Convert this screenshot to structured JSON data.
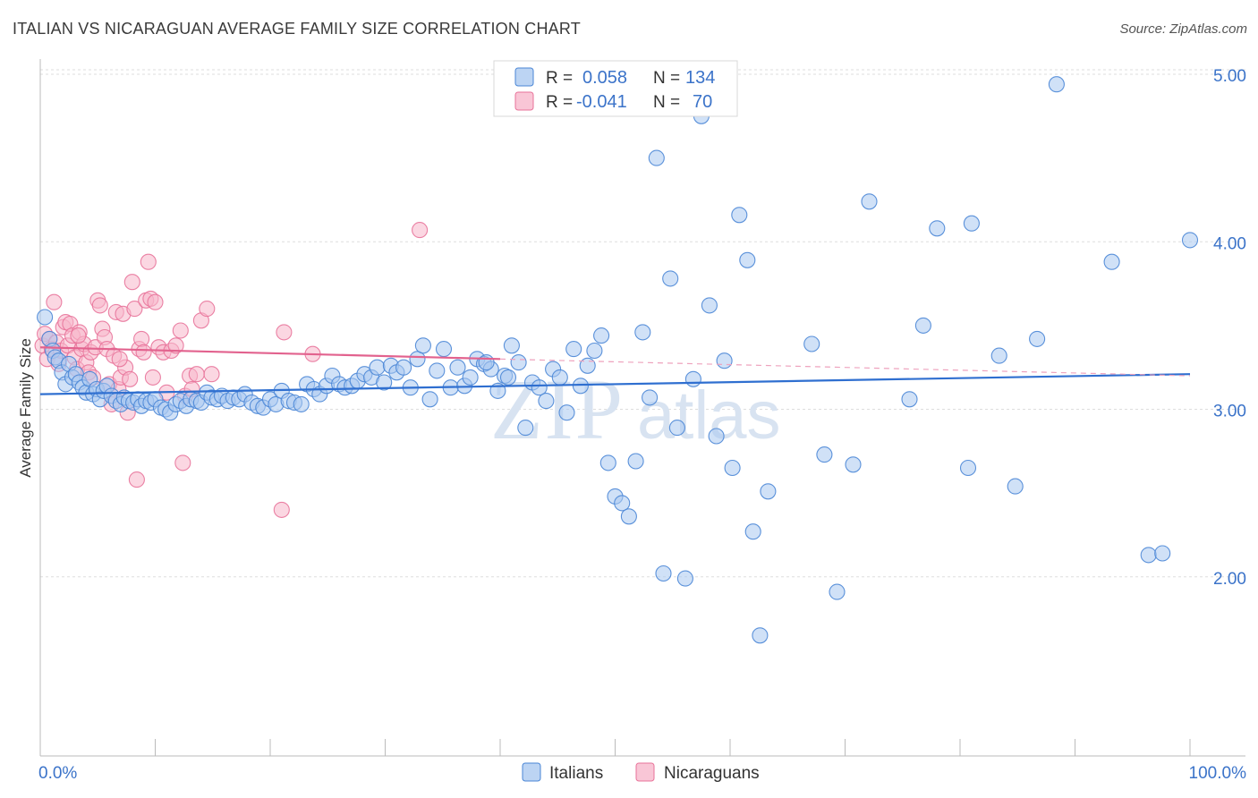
{
  "title": "ITALIAN VS NICARAGUAN AVERAGE FAMILY SIZE CORRELATION CHART",
  "source": "Source: ZipAtlas.com",
  "watermark": {
    "zip": "ZIP",
    "atlas": "atlas"
  },
  "legend_top": [
    {
      "name": "Italians",
      "r_label": "R =",
      "r_value": "0.058",
      "n_label": "N =",
      "n_value": "134",
      "color": "#4a86d6"
    },
    {
      "name": "Nicaraguans",
      "r_label": "R =",
      "r_value": "-0.041",
      "n_label": "N =",
      "n_value": "70",
      "color": "#e8739a"
    }
  ],
  "chart_data": {
    "type": "scatter",
    "title": "ITALIAN VS NICARAGUAN AVERAGE FAMILY SIZE CORRELATION CHART",
    "xlabel": "",
    "ylabel": "Average Family Size",
    "xlim": [
      0,
      100
    ],
    "ylim": [
      1.0,
      5.1
    ],
    "x_tick_labels": [
      "0.0%",
      "100.0%"
    ],
    "y_ticks": [
      2.0,
      3.0,
      4.0,
      5.0
    ],
    "y_tick_labels": [
      "2.00",
      "3.00",
      "4.00",
      "5.00"
    ],
    "grid": true,
    "legend": "bottom-center",
    "series": [
      {
        "name": "Italians",
        "color": "#4a86d6",
        "fill": "#a9c8f0",
        "trend": [
          [
            0,
            3.09
          ],
          [
            100,
            3.21
          ]
        ],
        "points": [
          [
            0.4,
            3.55
          ],
          [
            0.8,
            3.42
          ],
          [
            1.1,
            3.35
          ],
          [
            1.3,
            3.31
          ],
          [
            1.6,
            3.29
          ],
          [
            1.9,
            3.22
          ],
          [
            2.2,
            3.15
          ],
          [
            2.5,
            3.27
          ],
          [
            2.8,
            3.19
          ],
          [
            3.1,
            3.21
          ],
          [
            3.4,
            3.16
          ],
          [
            3.7,
            3.13
          ],
          [
            4.0,
            3.1
          ],
          [
            4.3,
            3.18
          ],
          [
            4.6,
            3.09
          ],
          [
            4.9,
            3.12
          ],
          [
            5.2,
            3.06
          ],
          [
            5.5,
            3.11
          ],
          [
            5.8,
            3.14
          ],
          [
            6.2,
            3.08
          ],
          [
            6.6,
            3.05
          ],
          [
            7.0,
            3.03
          ],
          [
            7.3,
            3.07
          ],
          [
            7.7,
            3.05
          ],
          [
            8.1,
            3.04
          ],
          [
            8.5,
            3.06
          ],
          [
            8.8,
            3.02
          ],
          [
            9.2,
            3.05
          ],
          [
            9.6,
            3.04
          ],
          [
            10.0,
            3.06
          ],
          [
            10.5,
            3.01
          ],
          [
            10.9,
            3.0
          ],
          [
            11.3,
            2.98
          ],
          [
            11.8,
            3.03
          ],
          [
            12.2,
            3.05
          ],
          [
            12.7,
            3.02
          ],
          [
            13.1,
            3.06
          ],
          [
            13.6,
            3.05
          ],
          [
            14.0,
            3.04
          ],
          [
            14.5,
            3.1
          ],
          [
            14.9,
            3.07
          ],
          [
            15.4,
            3.06
          ],
          [
            15.8,
            3.08
          ],
          [
            16.3,
            3.05
          ],
          [
            16.8,
            3.07
          ],
          [
            17.3,
            3.06
          ],
          [
            17.8,
            3.09
          ],
          [
            18.4,
            3.04
          ],
          [
            18.9,
            3.02
          ],
          [
            19.4,
            3.01
          ],
          [
            20.0,
            3.06
          ],
          [
            20.5,
            3.03
          ],
          [
            21.0,
            3.11
          ],
          [
            21.6,
            3.05
          ],
          [
            22.1,
            3.04
          ],
          [
            22.7,
            3.03
          ],
          [
            23.2,
            3.15
          ],
          [
            23.8,
            3.12
          ],
          [
            24.3,
            3.09
          ],
          [
            24.9,
            3.14
          ],
          [
            25.4,
            3.2
          ],
          [
            26.0,
            3.15
          ],
          [
            26.5,
            3.13
          ],
          [
            27.1,
            3.14
          ],
          [
            27.6,
            3.17
          ],
          [
            28.2,
            3.21
          ],
          [
            28.8,
            3.19
          ],
          [
            29.3,
            3.25
          ],
          [
            29.9,
            3.16
          ],
          [
            30.5,
            3.26
          ],
          [
            31.0,
            3.22
          ],
          [
            31.6,
            3.25
          ],
          [
            32.2,
            3.13
          ],
          [
            32.8,
            3.3
          ],
          [
            33.3,
            3.38
          ],
          [
            33.9,
            3.06
          ],
          [
            34.5,
            3.23
          ],
          [
            35.1,
            3.36
          ],
          [
            35.7,
            3.13
          ],
          [
            36.3,
            3.25
          ],
          [
            36.9,
            3.14
          ],
          [
            37.4,
            3.19
          ],
          [
            38.0,
            3.3
          ],
          [
            38.6,
            3.27
          ],
          [
            39.2,
            3.24
          ],
          [
            39.8,
            3.11
          ],
          [
            40.4,
            3.2
          ],
          [
            41.0,
            3.38
          ],
          [
            41.6,
            3.28
          ],
          [
            42.2,
            2.89
          ],
          [
            42.8,
            3.16
          ],
          [
            43.4,
            3.13
          ],
          [
            44.0,
            3.05
          ],
          [
            44.6,
            3.24
          ],
          [
            45.2,
            3.19
          ],
          [
            45.8,
            2.98
          ],
          [
            46.4,
            3.36
          ],
          [
            47.0,
            3.14
          ],
          [
            47.6,
            3.26
          ],
          [
            48.2,
            3.35
          ],
          [
            48.8,
            3.44
          ],
          [
            49.4,
            2.68
          ],
          [
            50.0,
            2.48
          ],
          [
            50.6,
            2.44
          ],
          [
            51.2,
            2.36
          ],
          [
            51.8,
            2.69
          ],
          [
            52.4,
            3.46
          ],
          [
            53.0,
            3.07
          ],
          [
            53.6,
            4.5
          ],
          [
            54.2,
            2.02
          ],
          [
            54.8,
            3.78
          ],
          [
            55.4,
            2.89
          ],
          [
            56.1,
            1.99
          ],
          [
            56.8,
            3.18
          ],
          [
            57.5,
            4.75
          ],
          [
            58.2,
            3.62
          ],
          [
            58.8,
            2.84
          ],
          [
            59.5,
            3.29
          ],
          [
            60.2,
            2.65
          ],
          [
            60.8,
            4.16
          ],
          [
            61.5,
            3.89
          ],
          [
            62.0,
            2.27
          ],
          [
            62.6,
            1.65
          ],
          [
            63.3,
            2.51
          ],
          [
            67.1,
            3.39
          ],
          [
            68.2,
            2.73
          ],
          [
            69.3,
            1.91
          ],
          [
            70.7,
            2.67
          ],
          [
            72.1,
            4.24
          ],
          [
            75.6,
            3.06
          ],
          [
            76.8,
            3.5
          ],
          [
            78.0,
            4.08
          ],
          [
            80.7,
            2.65
          ],
          [
            81.0,
            4.11
          ],
          [
            83.4,
            3.32
          ],
          [
            84.8,
            2.54
          ],
          [
            86.7,
            3.42
          ],
          [
            88.4,
            4.94
          ],
          [
            93.2,
            3.88
          ],
          [
            96.4,
            2.13
          ],
          [
            97.6,
            2.14
          ],
          [
            100.0,
            4.01
          ],
          [
            38.8,
            3.28
          ],
          [
            40.7,
            3.19
          ]
        ]
      },
      {
        "name": "Nicaraguans",
        "color": "#e8739a",
        "fill": "#f7b6cb",
        "trend": [
          [
            0,
            3.37
          ],
          [
            40,
            3.3
          ]
        ],
        "trend_dashed": [
          [
            40,
            3.3
          ],
          [
            100,
            3.2
          ]
        ],
        "points": [
          [
            0.2,
            3.38
          ],
          [
            0.4,
            3.45
          ],
          [
            0.6,
            3.3
          ],
          [
            0.8,
            3.42
          ],
          [
            1.0,
            3.36
          ],
          [
            1.2,
            3.64
          ],
          [
            1.4,
            3.4
          ],
          [
            1.6,
            3.27
          ],
          [
            1.8,
            3.35
          ],
          [
            2.0,
            3.49
          ],
          [
            2.2,
            3.52
          ],
          [
            2.4,
            3.38
          ],
          [
            2.6,
            3.51
          ],
          [
            2.8,
            3.44
          ],
          [
            3.0,
            3.31
          ],
          [
            3.2,
            3.24
          ],
          [
            3.4,
            3.46
          ],
          [
            3.6,
            3.36
          ],
          [
            3.8,
            3.39
          ],
          [
            4.0,
            3.28
          ],
          [
            4.2,
            3.22
          ],
          [
            4.4,
            3.34
          ],
          [
            4.6,
            3.19
          ],
          [
            4.8,
            3.37
          ],
          [
            5.0,
            3.65
          ],
          [
            5.2,
            3.62
          ],
          [
            5.4,
            3.48
          ],
          [
            5.6,
            3.43
          ],
          [
            5.8,
            3.36
          ],
          [
            6.0,
            3.15
          ],
          [
            6.2,
            3.03
          ],
          [
            6.4,
            3.32
          ],
          [
            6.6,
            3.58
          ],
          [
            6.8,
            3.12
          ],
          [
            7.0,
            3.19
          ],
          [
            7.2,
            3.57
          ],
          [
            7.4,
            3.25
          ],
          [
            7.6,
            2.98
          ],
          [
            7.8,
            3.18
          ],
          [
            8.0,
            3.76
          ],
          [
            8.2,
            3.6
          ],
          [
            8.4,
            2.58
          ],
          [
            8.6,
            3.36
          ],
          [
            8.8,
            3.42
          ],
          [
            9.0,
            3.34
          ],
          [
            9.2,
            3.65
          ],
          [
            9.4,
            3.88
          ],
          [
            9.6,
            3.66
          ],
          [
            9.8,
            3.19
          ],
          [
            10.0,
            3.64
          ],
          [
            10.3,
            3.37
          ],
          [
            10.7,
            3.34
          ],
          [
            11.0,
            3.1
          ],
          [
            11.4,
            3.35
          ],
          [
            11.8,
            3.38
          ],
          [
            12.2,
            3.47
          ],
          [
            12.6,
            3.08
          ],
          [
            13.0,
            3.2
          ],
          [
            12.4,
            2.68
          ],
          [
            13.2,
            3.12
          ],
          [
            13.6,
            3.21
          ],
          [
            14.0,
            3.53
          ],
          [
            14.5,
            3.6
          ],
          [
            14.9,
            3.21
          ],
          [
            21.2,
            3.46
          ],
          [
            21.0,
            2.4
          ],
          [
            23.7,
            3.33
          ],
          [
            33.0,
            4.07
          ],
          [
            6.9,
            3.3
          ],
          [
            3.3,
            3.44
          ]
        ]
      }
    ]
  }
}
